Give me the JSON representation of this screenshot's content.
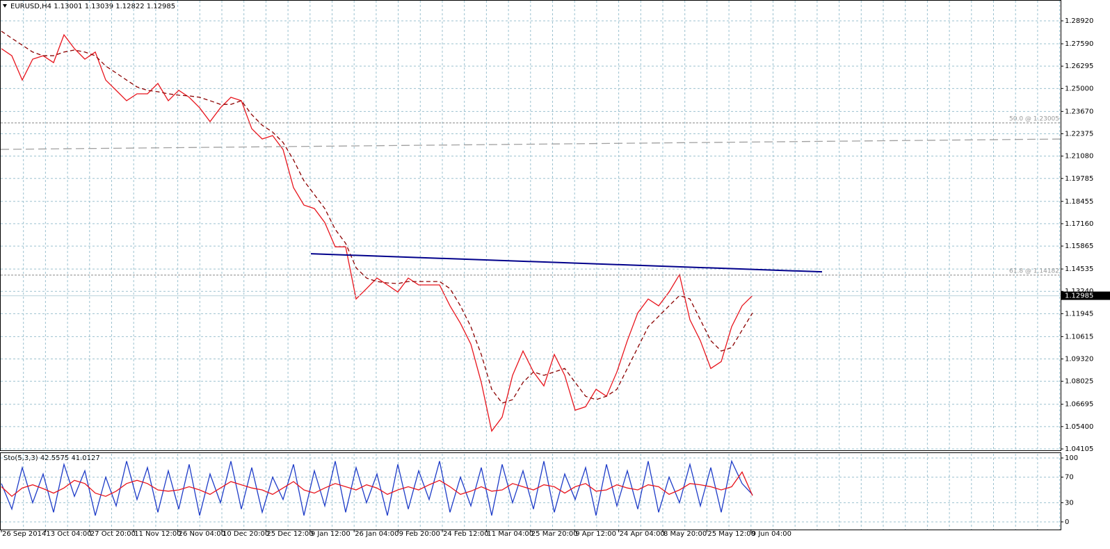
{
  "chart_data": [
    {
      "type": "line",
      "title": "EURUSD,H4  1.13001 1.13039 1.12822 1.12985",
      "time_labels": [
        "26 Sep 2014",
        "13 Oct 04:00",
        "27 Oct 20:00",
        "11 Nov 12:00",
        "26 Nov 04:00",
        "10 Dec 20:00",
        "25 Dec 12:00",
        "9 Jan 12:00",
        "26 Jan 04:00",
        "9 Feb 20:00",
        "24 Feb 12:00",
        "11 Mar 04:00",
        "25 Mar 20:00",
        "9 Apr 12:00",
        "24 Apr 04:00",
        "8 May 20:00",
        "25 May 12:00",
        "9 Jun 04:00"
      ],
      "series": [
        {
          "color": "#e8141c",
          "values": [
            1.2731,
            1.269,
            1.2549,
            1.267,
            1.269,
            1.265,
            1.2811,
            1.2731,
            1.267,
            1.2711,
            1.2549,
            1.2489,
            1.2429,
            1.2469,
            1.2469,
            1.2529,
            1.2429,
            1.2489,
            1.2449,
            1.2388,
            1.2308,
            1.2388,
            1.2449,
            1.2429,
            1.2267,
            1.2207,
            1.2227,
            1.2146,
            1.1925,
            1.1824,
            1.1804,
            1.1723,
            1.1582,
            1.1582,
            1.128,
            1.134,
            1.1401,
            1.1361,
            1.132,
            1.1401,
            1.1361,
            1.1361,
            1.1361,
            1.124,
            1.1139,
            1.1018,
            1.0796,
            1.0514,
            1.0595,
            1.0837,
            1.0978,
            1.0857,
            1.0776,
            1.0958,
            1.0837,
            1.0635,
            1.0655,
            1.0756,
            1.0716,
            1.0857,
            1.1038,
            1.1199,
            1.128,
            1.124,
            1.132,
            1.1421,
            1.1159,
            1.1038,
            1.0877,
            1.0917,
            1.1119,
            1.124,
            1.13
          ]
        },
        {
          "color": "#8b0000",
          "dashed": true,
          "values": [
            1.2832,
            1.2791,
            1.2751,
            1.2711,
            1.269,
            1.269,
            1.2711,
            1.2723,
            1.2711,
            1.269,
            1.263,
            1.259,
            1.2549,
            1.2509,
            1.2489,
            1.2481,
            1.2469,
            1.2461,
            1.2457,
            1.2449,
            1.2429,
            1.2408,
            1.2408,
            1.2429,
            1.2348,
            1.2287,
            1.2247,
            1.2187,
            1.2086,
            1.1965,
            1.1885,
            1.1804,
            1.1683,
            1.1602,
            1.1461,
            1.1401,
            1.1381,
            1.1373,
            1.1369,
            1.1381,
            1.1381,
            1.1381,
            1.1381,
            1.134,
            1.124,
            1.1119,
            1.0958,
            1.0756,
            1.0676,
            1.0696,
            1.0796,
            1.0857,
            1.0837,
            1.0857,
            1.0877,
            1.0796,
            1.0716,
            1.0696,
            1.0716,
            1.0756,
            1.0877,
            1.0998,
            1.1119,
            1.1179,
            1.124,
            1.13,
            1.128,
            1.1159,
            1.1038,
            1.0978,
            1.0998,
            1.1099,
            1.1199
          ]
        }
      ],
      "ylim": [
        1.04024,
        1.30129
      ],
      "yticks": [
        {
          "value": 1.2892,
          "label": "1.28920"
        },
        {
          "value": 1.2759,
          "label": "1.27590"
        },
        {
          "value": 1.26295,
          "label": "1.26295"
        },
        {
          "value": 1.25,
          "label": "1.25000"
        },
        {
          "value": 1.2367,
          "label": "1.23670"
        },
        {
          "value": 1.22375,
          "label": "1.22375"
        },
        {
          "value": 1.2108,
          "label": "1.21080"
        },
        {
          "value": 1.19785,
          "label": "1.19785"
        },
        {
          "value": 1.18455,
          "label": "1.18455"
        },
        {
          "value": 1.1716,
          "label": "1.17160"
        },
        {
          "value": 1.15865,
          "label": "1.15865"
        },
        {
          "value": 1.14535,
          "label": "1.14535"
        },
        {
          "value": 1.1324,
          "label": "1.13240"
        },
        {
          "value": 1.11945,
          "label": "1.11945"
        },
        {
          "value": 1.10615,
          "label": "1.10615"
        },
        {
          "value": 1.0932,
          "label": "1.09320"
        },
        {
          "value": 1.08025,
          "label": "1.08025"
        },
        {
          "value": 1.06695,
          "label": "1.06695"
        },
        {
          "value": 1.054,
          "label": "1.05400"
        },
        {
          "value": 1.04105,
          "label": "1.04105"
        }
      ],
      "grid": true,
      "fibo_levels": [
        {
          "value": 1.23005,
          "label": "50.0 @ 1.23005"
        },
        {
          "value": 1.14182,
          "label": "61.8 @ 1.14182"
        }
      ],
      "trend_line": {
        "color": "#00008b",
        "values": [
          1.1542,
          1.1437
        ]
      },
      "dashed_line": {
        "color": "#a0a0a0",
        "values": [
          1.2147,
          1.2207
        ]
      },
      "last_price": {
        "value": 1.12985,
        "label": "1.12985"
      }
    },
    {
      "type": "line",
      "title": "Sto(5,3,3) 42.5575 41.0127",
      "series": [
        {
          "color": "#1e3cc8",
          "values": [
            60,
            20,
            85,
            30,
            75,
            15,
            90,
            40,
            80,
            10,
            70,
            25,
            95,
            35,
            85,
            15,
            80,
            20,
            90,
            10,
            75,
            30,
            95,
            20,
            85,
            15,
            70,
            35,
            90,
            10,
            80,
            25,
            95,
            15,
            85,
            30,
            75,
            10,
            90,
            20,
            80,
            35,
            95,
            15,
            70,
            25,
            85,
            10,
            90,
            30,
            80,
            20,
            95,
            15,
            75,
            35,
            85,
            10,
            90,
            25,
            80,
            20,
            95,
            15,
            70,
            30,
            90,
            25,
            85,
            15,
            95,
            60,
            42.5575
          ]
        },
        {
          "color": "#e8141c",
          "values": [
            55,
            40,
            53,
            58,
            52,
            45,
            53,
            65,
            60,
            45,
            40,
            48,
            60,
            65,
            60,
            50,
            48,
            50,
            55,
            50,
            43,
            53,
            63,
            58,
            53,
            50,
            43,
            53,
            63,
            50,
            45,
            53,
            60,
            55,
            50,
            58,
            53,
            43,
            50,
            55,
            50,
            58,
            65,
            55,
            43,
            48,
            55,
            48,
            50,
            60,
            55,
            50,
            58,
            55,
            45,
            55,
            60,
            48,
            50,
            58,
            53,
            50,
            58,
            55,
            43,
            50,
            60,
            58,
            55,
            50,
            55,
            78,
            41.0127
          ]
        }
      ],
      "ylim": [
        -12,
        107.6
      ],
      "yticks": [
        100,
        70,
        30,
        0
      ],
      "grid": true
    }
  ]
}
